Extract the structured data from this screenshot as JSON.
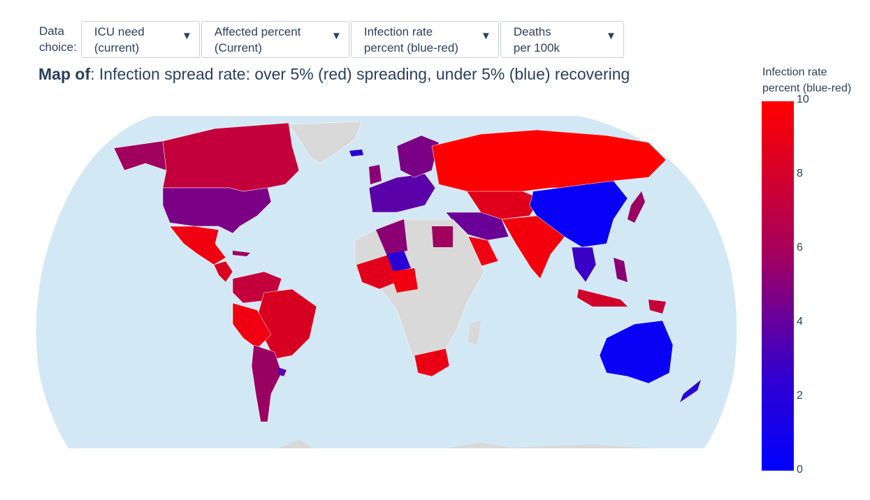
{
  "controls": {
    "label_line1": "Data",
    "label_line2": "choice:",
    "dropdowns": [
      {
        "line1": "ICU need",
        "line2": "(current)"
      },
      {
        "line1": "Affected percent",
        "line2": "(Current)"
      },
      {
        "line1": "Infection rate",
        "line2": "percent (blue-red)"
      },
      {
        "line1": "Deaths",
        "line2": "per 100k"
      }
    ],
    "arrow": "▼"
  },
  "title": {
    "bold": "Map of",
    "rest": ": Infection spread rate: over 5% (red) spreading, under 5% (blue) recovering"
  },
  "colorbar": {
    "title_line1": "Infection rate",
    "title_line2": "percent (blue-red)",
    "ticks": [
      "10",
      "8",
      "6",
      "4",
      "2",
      "0"
    ],
    "range": [
      0,
      10
    ],
    "colors": {
      "high": "#ff0000",
      "mid": "#a9005a",
      "low": "#0000ff"
    }
  },
  "colors": {
    "ocean": "#d3e8f5",
    "no_data": "#d9d9d9",
    "text": "#2a3f5f"
  }
}
